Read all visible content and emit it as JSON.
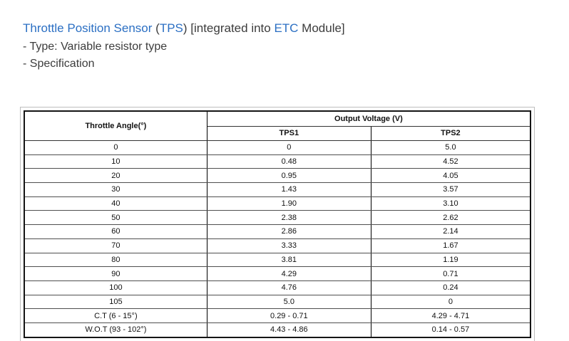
{
  "header": {
    "title_parts": [
      {
        "text": "Throttle Position Sensor",
        "link": true
      },
      {
        "text": " (",
        "link": false
      },
      {
        "text": "TPS",
        "link": true
      },
      {
        "text": ") [integrated into ",
        "link": false
      },
      {
        "text": "ETC",
        "link": true
      },
      {
        "text": " Module]",
        "link": false
      }
    ],
    "line_type": "- Type: Variable resistor type",
    "line_spec": "- Specification"
  },
  "colors": {
    "link_blue": "#2b6fc3",
    "body_text": "#3c3c3c",
    "table_border": "#141414",
    "wrapper_border": "#bdbdbd"
  },
  "table": {
    "col1_header": "Throttle Angle(°)",
    "group_header": "Output Voltage (V)",
    "sub_headers": [
      "TPS1",
      "TPS2"
    ],
    "rows": [
      {
        "angle": "0",
        "tps1": "0",
        "tps2": "5.0"
      },
      {
        "angle": "10",
        "tps1": "0.48",
        "tps2": "4.52"
      },
      {
        "angle": "20",
        "tps1": "0.95",
        "tps2": "4.05"
      },
      {
        "angle": "30",
        "tps1": "1.43",
        "tps2": "3.57"
      },
      {
        "angle": "40",
        "tps1": "1.90",
        "tps2": "3.10"
      },
      {
        "angle": "50",
        "tps1": "2.38",
        "tps2": "2.62"
      },
      {
        "angle": "60",
        "tps1": "2.86",
        "tps2": "2.14"
      },
      {
        "angle": "70",
        "tps1": "3.33",
        "tps2": "1.67"
      },
      {
        "angle": "80",
        "tps1": "3.81",
        "tps2": "1.19"
      },
      {
        "angle": "90",
        "tps1": "4.29",
        "tps2": "0.71"
      },
      {
        "angle": "100",
        "tps1": "4.76",
        "tps2": "0.24"
      },
      {
        "angle": "105",
        "tps1": "5.0",
        "tps2": "0"
      },
      {
        "angle": "C.T (6 - 15°)",
        "tps1": "0.29 - 0.71",
        "tps2": "4.29 - 4.71"
      },
      {
        "angle": "W.O.T (93 - 102°)",
        "tps1": "4.43 - 4.86",
        "tps2": "0.14 - 0.57"
      }
    ]
  }
}
